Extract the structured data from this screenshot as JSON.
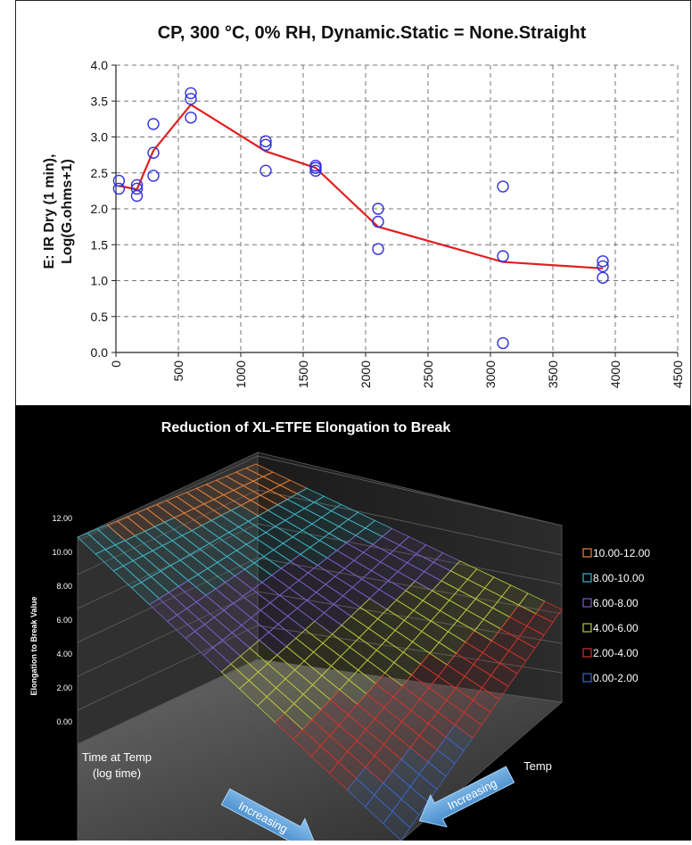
{
  "chart_data": [
    {
      "type": "scatter",
      "title": "CP,  300 °C,  0% RH,  Dynamic.Static = None.Straight",
      "ylabel_line1": "E: IR Dry (1 min),",
      "ylabel_line2": "Log(G.ohms+1)",
      "xlabel": "",
      "xlim": [
        0,
        4500
      ],
      "ylim": [
        0.0,
        4.0
      ],
      "x_ticks": [
        "0",
        "500",
        "1000",
        "1500",
        "2000",
        "2500",
        "3000",
        "3500",
        "4000",
        "4500"
      ],
      "y_ticks": [
        "0.0",
        "0.5",
        "1.0",
        "1.5",
        "2.0",
        "2.5",
        "3.0",
        "3.5",
        "4.0"
      ],
      "grid": true,
      "marker_color": "#3030e0",
      "line_color": "#e02020",
      "points": [
        {
          "x": 24,
          "y": 2.39
        },
        {
          "x": 24,
          "y": 2.28
        },
        {
          "x": 168,
          "y": 2.33
        },
        {
          "x": 168,
          "y": 2.28
        },
        {
          "x": 168,
          "y": 2.18
        },
        {
          "x": 300,
          "y": 3.18
        },
        {
          "x": 300,
          "y": 2.78
        },
        {
          "x": 300,
          "y": 2.46
        },
        {
          "x": 600,
          "y": 3.61
        },
        {
          "x": 600,
          "y": 3.53
        },
        {
          "x": 600,
          "y": 3.27
        },
        {
          "x": 1200,
          "y": 2.94
        },
        {
          "x": 1200,
          "y": 2.89
        },
        {
          "x": 1200,
          "y": 2.53
        },
        {
          "x": 1600,
          "y": 2.6
        },
        {
          "x": 1600,
          "y": 2.57
        },
        {
          "x": 1600,
          "y": 2.53
        },
        {
          "x": 2100,
          "y": 2.0
        },
        {
          "x": 2100,
          "y": 1.82
        },
        {
          "x": 2100,
          "y": 1.44
        },
        {
          "x": 3100,
          "y": 2.31
        },
        {
          "x": 3100,
          "y": 1.34
        },
        {
          "x": 3100,
          "y": 0.13
        },
        {
          "x": 3900,
          "y": 1.27
        },
        {
          "x": 3900,
          "y": 1.2
        },
        {
          "x": 3900,
          "y": 1.04
        }
      ],
      "mean_line": [
        {
          "x": 24,
          "y": 2.32
        },
        {
          "x": 168,
          "y": 2.27
        },
        {
          "x": 300,
          "y": 2.81
        },
        {
          "x": 600,
          "y": 3.45
        },
        {
          "x": 1200,
          "y": 2.8
        },
        {
          "x": 1600,
          "y": 2.57
        },
        {
          "x": 2100,
          "y": 1.75
        },
        {
          "x": 3100,
          "y": 1.26
        },
        {
          "x": 3900,
          "y": 1.17
        }
      ]
    },
    {
      "type": "surface",
      "title": "Reduction of XL-ETFE Elongation to Break",
      "zlabel": "Elongation to Break Value",
      "z_ticks": [
        "0.00",
        "2.00",
        "4.00",
        "6.00",
        "8.00",
        "10.00",
        "12.00"
      ],
      "axis_label_time_line1": "Time at Temp",
      "axis_label_time_line2": "(log time)",
      "axis_label_temp": "Temp",
      "arrow_label_left": "Increasing",
      "arrow_label_right": "Increasing",
      "legend_position": "right",
      "legend": [
        {
          "label": "10.00-12.00",
          "color": "#e8843c"
        },
        {
          "label": "8.00-10.00",
          "color": "#3fb6c9"
        },
        {
          "label": "6.00-8.00",
          "color": "#7b5ec8"
        },
        {
          "label": "4.00-6.00",
          "color": "#b7c93c"
        },
        {
          "label": "2.00-4.00",
          "color": "#d0342c"
        },
        {
          "label": "0.00-2.00",
          "color": "#3a68c8"
        }
      ]
    }
  ]
}
